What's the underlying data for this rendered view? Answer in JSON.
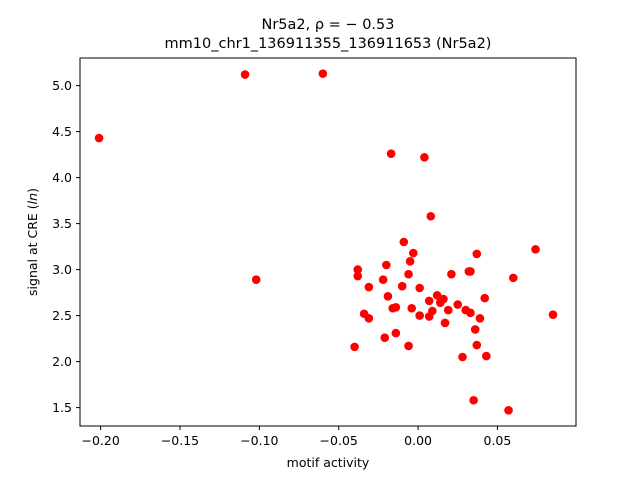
{
  "chart_data": {
    "type": "scatter",
    "title_line1": "Nr5a2, ρ = − 0.53",
    "title_line2": "mm10_chr1_136911355_136911653 (Nr5a2)",
    "xlabel": "motif activity",
    "ylabel": "signal at CRE (ln)",
    "xlim": [
      -0.213,
      0.0995
    ],
    "ylim": [
      1.3,
      5.3
    ],
    "xticks": [
      -0.2,
      -0.15,
      -0.1,
      -0.05,
      0.0,
      0.05
    ],
    "xtick_labels": [
      "−0.20",
      "−0.15",
      "−0.10",
      "−0.05",
      "0.00",
      "0.05"
    ],
    "yticks": [
      1.5,
      2.0,
      2.5,
      3.0,
      3.5,
      4.0,
      4.5,
      5.0
    ],
    "ytick_labels": [
      "1.5",
      "2.0",
      "2.5",
      "3.0",
      "3.5",
      "4.0",
      "4.5",
      "5.0"
    ],
    "marker_color": "#ff0000",
    "points": [
      [
        -0.201,
        4.43
      ],
      [
        -0.109,
        5.12
      ],
      [
        -0.06,
        5.13
      ],
      [
        -0.102,
        2.89
      ],
      [
        -0.017,
        4.26
      ],
      [
        0.004,
        4.22
      ],
      [
        0.008,
        3.58
      ],
      [
        -0.038,
        3.0
      ],
      [
        -0.038,
        2.93
      ],
      [
        -0.034,
        2.52
      ],
      [
        -0.031,
        2.47
      ],
      [
        -0.031,
        2.81
      ],
      [
        -0.04,
        2.16
      ],
      [
        -0.022,
        2.89
      ],
      [
        -0.02,
        3.05
      ],
      [
        -0.019,
        2.71
      ],
      [
        -0.021,
        2.26
      ],
      [
        -0.016,
        2.58
      ],
      [
        -0.014,
        2.59
      ],
      [
        -0.014,
        2.31
      ],
      [
        -0.01,
        2.82
      ],
      [
        -0.009,
        3.3
      ],
      [
        -0.006,
        2.95
      ],
      [
        -0.005,
        3.09
      ],
      [
        -0.003,
        3.18
      ],
      [
        -0.006,
        2.17
      ],
      [
        -0.004,
        2.58
      ],
      [
        0.001,
        2.8
      ],
      [
        0.001,
        2.5
      ],
      [
        0.007,
        2.66
      ],
      [
        0.007,
        2.49
      ],
      [
        0.009,
        2.55
      ],
      [
        0.012,
        2.72
      ],
      [
        0.014,
        2.64
      ],
      [
        0.016,
        2.68
      ],
      [
        0.017,
        2.42
      ],
      [
        0.019,
        2.56
      ],
      [
        0.021,
        2.95
      ],
      [
        0.025,
        2.62
      ],
      [
        0.028,
        2.05
      ],
      [
        0.03,
        2.56
      ],
      [
        0.032,
        2.98
      ],
      [
        0.033,
        2.98
      ],
      [
        0.033,
        2.53
      ],
      [
        0.035,
        1.58
      ],
      [
        0.036,
        2.35
      ],
      [
        0.037,
        2.18
      ],
      [
        0.037,
        3.17
      ],
      [
        0.039,
        2.47
      ],
      [
        0.042,
        2.69
      ],
      [
        0.043,
        2.06
      ],
      [
        0.057,
        1.47
      ],
      [
        0.06,
        2.91
      ],
      [
        0.074,
        3.22
      ],
      [
        0.085,
        2.51
      ]
    ]
  }
}
